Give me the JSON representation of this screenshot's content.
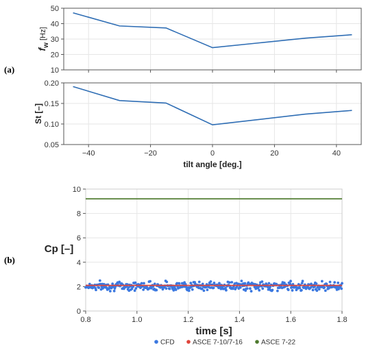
{
  "panel_labels": [
    "(a)",
    "(b)"
  ],
  "chart_data": [
    {
      "type": "line",
      "panel": "(a)",
      "x": [
        -45,
        -30,
        -15,
        0,
        15,
        30,
        45
      ],
      "series": [
        {
          "values": [
            47,
            38.5,
            37.2,
            24.4,
            27.5,
            30.6,
            32.8
          ],
          "color": "#2e6db4"
        }
      ],
      "xlabel": "",
      "ylabel_main": "f",
      "ylabel_sub": "w",
      "ylabel_unit": " [Hz]",
      "xlim": [
        -48,
        48
      ],
      "ylim": [
        10,
        50
      ],
      "yticks": [
        10,
        20,
        30,
        40,
        50
      ],
      "xticks": [
        -40,
        -20,
        0,
        20,
        40
      ],
      "show_xtick_labels": false,
      "grid": true
    },
    {
      "type": "line",
      "panel": "(a)",
      "x": [
        -45,
        -30,
        -15,
        0,
        15,
        30,
        45
      ],
      "series": [
        {
          "values": [
            0.191,
            0.157,
            0.151,
            0.098,
            0.111,
            0.124,
            0.133
          ],
          "color": "#2e6db4"
        }
      ],
      "xlabel": "tilt angle [deg.]",
      "ylabel": "St [–]",
      "xlim": [
        -48,
        48
      ],
      "ylim": [
        0.05,
        0.2
      ],
      "yticks": [
        "0.05",
        "0.10",
        "0.15",
        "0.20"
      ],
      "xticks": [
        "−40",
        "−20",
        "0",
        "20",
        "40"
      ],
      "xtick_values": [
        -40,
        -20,
        0,
        20,
        40
      ],
      "show_xtick_labels": true,
      "grid": true
    },
    {
      "type": "scatter",
      "panel": "(b)",
      "xlabel": "time [s]",
      "ylabel": "Cp [–]",
      "xlim": [
        0.8,
        1.8
      ],
      "ylim": [
        0,
        10
      ],
      "xticks": [
        "0.8",
        "1.0",
        "1.2",
        "1.4",
        "1.6",
        "1.8"
      ],
      "xtick_values": [
        0.8,
        1.0,
        1.2,
        1.4,
        1.6,
        1.8
      ],
      "yticks": [
        0,
        2,
        4,
        6,
        8,
        10
      ],
      "grid": true,
      "legend_position": "bottom",
      "series": [
        {
          "name": "CFD",
          "kind": "scatter",
          "color": "#3b78e0",
          "x_range": [
            0.8,
            1.8
          ],
          "n_points": 450,
          "mean": 2.05,
          "spread": 0.22
        },
        {
          "name": "ASCE 7-10/7-16",
          "kind": "hline",
          "color": "#e0443a",
          "value": 2.1
        },
        {
          "name": "ASCE 7-22",
          "kind": "hline",
          "color": "#4e7a2e",
          "value": 9.2
        }
      ]
    }
  ]
}
